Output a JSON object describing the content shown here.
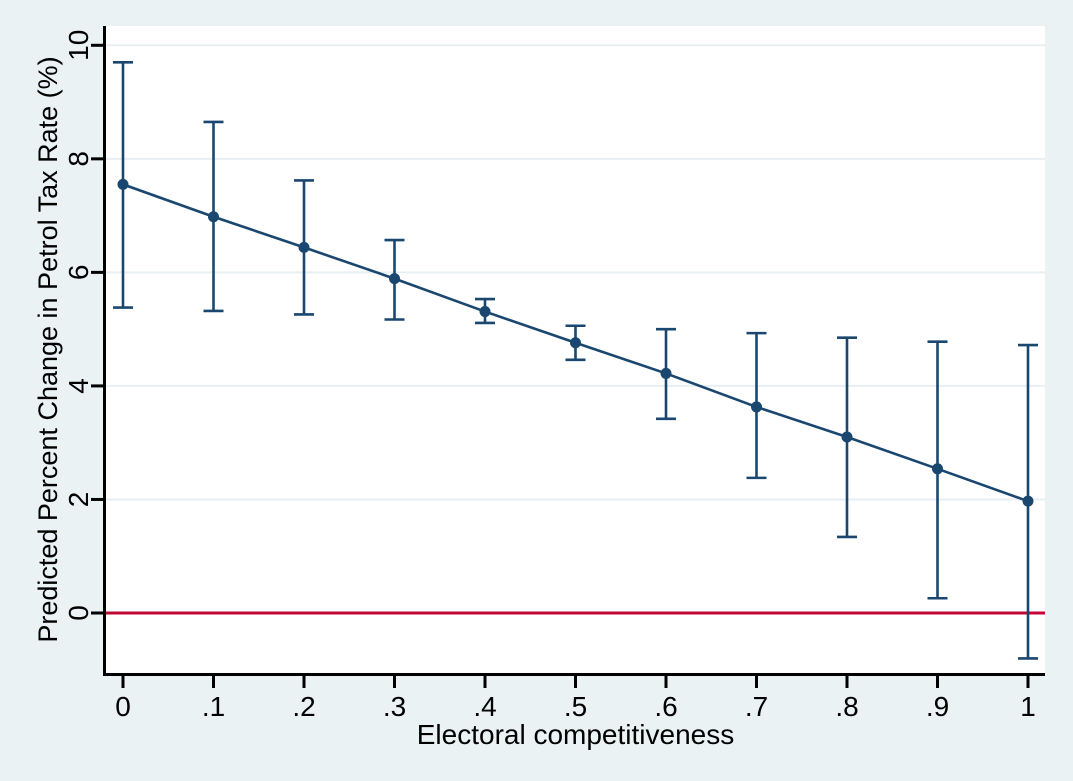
{
  "chart_data": {
    "type": "line",
    "subtype": "point-estimates-with-confidence-intervals",
    "title": "",
    "xlabel": "Electoral competitiveness",
    "ylabel": "Predicted Percent Change in Petrol Tax Rate (%)",
    "x": [
      0,
      0.1,
      0.2,
      0.3,
      0.4,
      0.5,
      0.6,
      0.7,
      0.8,
      0.9,
      1
    ],
    "x_tick_labels": [
      "0",
      ".1",
      ".2",
      ".3",
      ".4",
      ".5",
      ".6",
      ".7",
      ".8",
      ".9",
      "1"
    ],
    "y_ticks": [
      0,
      2,
      4,
      6,
      8,
      10
    ],
    "y_tick_labels": [
      "0",
      "2",
      "4",
      "6",
      "8",
      "10"
    ],
    "series": [
      {
        "name": "predicted-percent-change",
        "values": [
          7.55,
          6.98,
          6.44,
          5.89,
          5.31,
          4.76,
          4.22,
          3.63,
          3.1,
          2.54,
          1.97
        ],
        "ci_low": [
          5.38,
          5.32,
          5.26,
          5.17,
          5.11,
          4.46,
          3.42,
          2.38,
          1.34,
          0.26,
          -0.8
        ],
        "ci_high": [
          9.7,
          8.65,
          7.62,
          6.57,
          5.53,
          5.06,
          5.0,
          4.93,
          4.85,
          4.78,
          4.72
        ]
      }
    ],
    "reference_line_y": 0,
    "xlim": [
      -0.019,
      1.019
    ],
    "ylim": [
      -1.06,
      10.34
    ],
    "grid": true,
    "legend": "none"
  },
  "colors": {
    "background": "#eaf2f3",
    "plot_background": "#ffffff",
    "gridline": "#e8eff3",
    "series": "#1a476f",
    "reference_line": "#c10534",
    "axis": "#000000",
    "text": "#000000"
  }
}
